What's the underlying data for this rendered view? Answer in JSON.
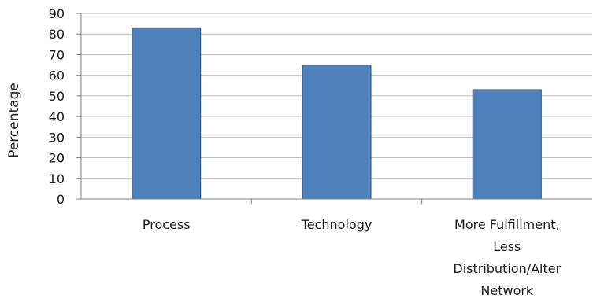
{
  "chart_data": {
    "type": "bar",
    "title": "",
    "xlabel": "",
    "ylabel": "Percentage",
    "categories": [
      [
        "Process"
      ],
      [
        "Technology"
      ],
      [
        "More Fulfillment,",
        "Less",
        "Distribution/Alter",
        "Network"
      ]
    ],
    "series": [
      {
        "values": [
          83,
          65,
          53
        ]
      }
    ],
    "ylim": [
      0,
      90
    ],
    "yticks": [
      0,
      10,
      20,
      30,
      40,
      50,
      60,
      70,
      80,
      90
    ],
    "grid": true,
    "legend": "none",
    "colors": {
      "bar_fill": "#4f81bd",
      "bar_stroke": "#2c4d75",
      "grid": "#bfbfbf",
      "axis": "#808080",
      "text": "#1a1a1a"
    }
  }
}
